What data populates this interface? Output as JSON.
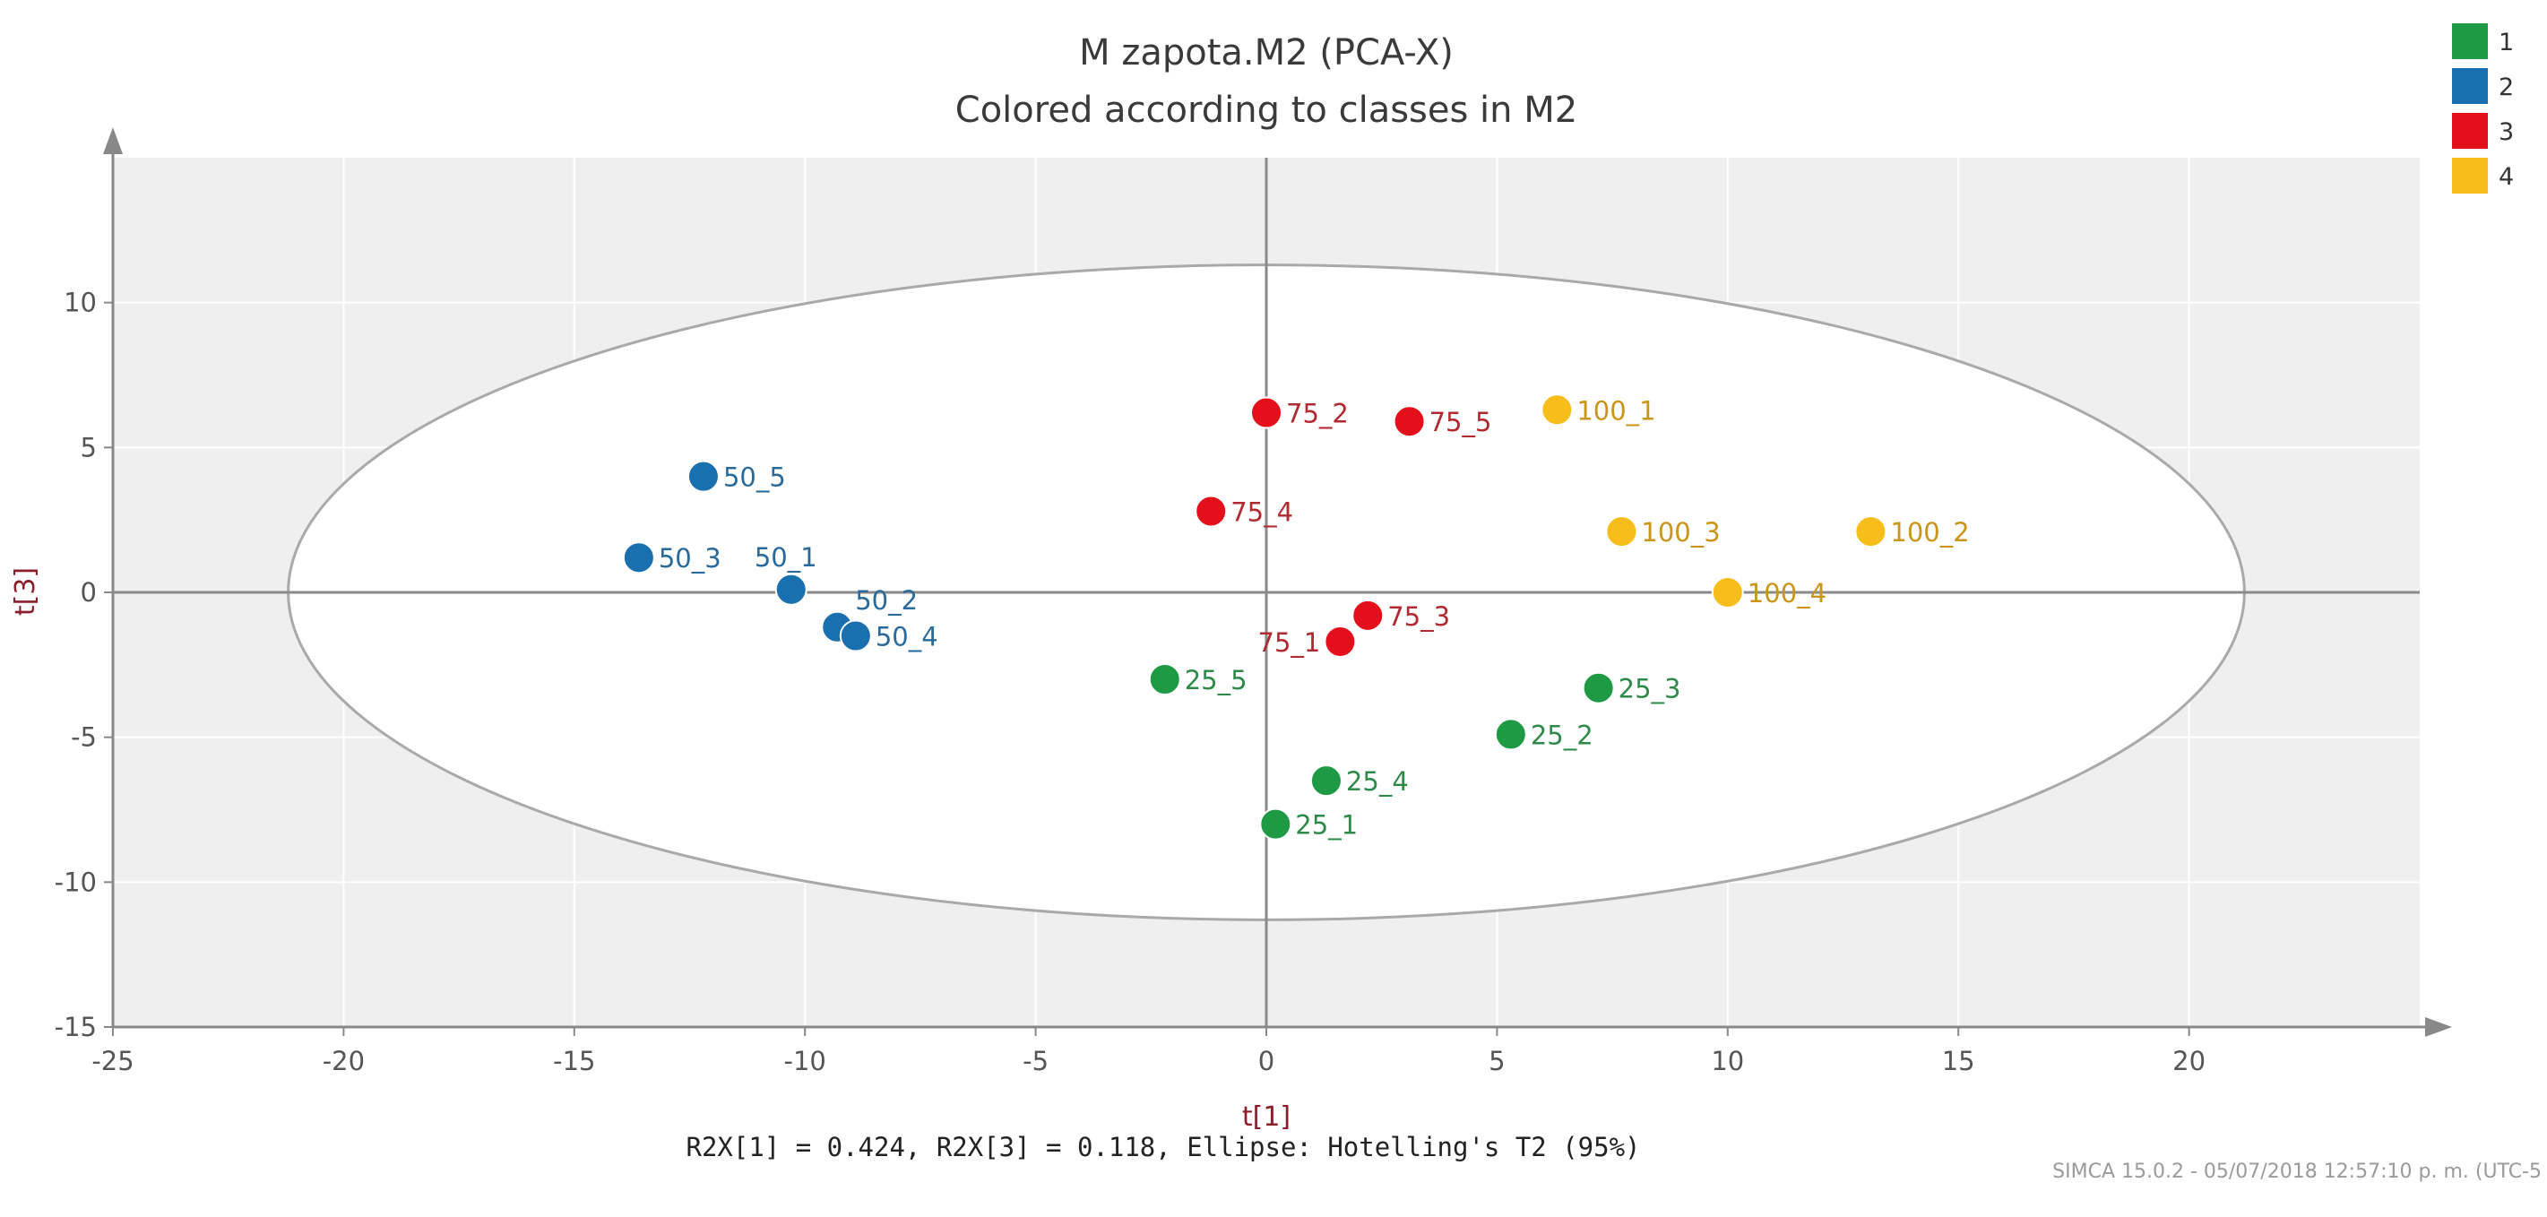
{
  "chart_data": {
    "type": "scatter",
    "title": "M zapota.M2 (PCA-X)",
    "subtitle": "Colored according to classes in M2",
    "xlabel": "t[1]",
    "ylabel": "t[3]",
    "xlim": [
      -25,
      25
    ],
    "ylim": [
      -15,
      15
    ],
    "xticks": [
      -25,
      -20,
      -15,
      -10,
      -5,
      0,
      5,
      10,
      15,
      20
    ],
    "yticks": [
      -15,
      -10,
      -5,
      0,
      5,
      10
    ],
    "grid": true,
    "legend_position": "top-right",
    "ellipse": {
      "label": "Hotelling's T2 (95%)",
      "center": [
        0,
        0
      ],
      "rx": 21.2,
      "ry": 11.3
    },
    "footer": "R2X[1] = 0.424, R2X[3] = 0.118, Ellipse: Hotelling's T2 (95%)",
    "credit": "SIMCA 15.0.2 - 05/07/2018 12:57:10 p. m. (UTC-5",
    "series": [
      {
        "name": "1",
        "color": "#1e9a45",
        "points": [
          {
            "label": "25_1",
            "x": 0.2,
            "y": -8.0
          },
          {
            "label": "25_2",
            "x": 5.3,
            "y": -4.9
          },
          {
            "label": "25_3",
            "x": 7.2,
            "y": -3.3
          },
          {
            "label": "25_4",
            "x": 1.3,
            "y": -6.5
          },
          {
            "label": "25_5",
            "x": -2.2,
            "y": -3.0
          }
        ]
      },
      {
        "name": "2",
        "color": "#1a6fae",
        "points": [
          {
            "label": "50_1",
            "x": -10.3,
            "y": 0.1
          },
          {
            "label": "50_2",
            "x": -9.3,
            "y": -1.2
          },
          {
            "label": "50_3",
            "x": -13.6,
            "y": 1.2
          },
          {
            "label": "50_4",
            "x": -8.9,
            "y": -1.5
          },
          {
            "label": "50_5",
            "x": -12.2,
            "y": 4.0
          }
        ]
      },
      {
        "name": "3",
        "color": "#e3101b",
        "points": [
          {
            "label": "75_1",
            "x": 1.6,
            "y": -1.7
          },
          {
            "label": "75_2",
            "x": 0.0,
            "y": 6.2
          },
          {
            "label": "75_3",
            "x": 2.2,
            "y": -0.8
          },
          {
            "label": "75_4",
            "x": -1.2,
            "y": 2.8
          },
          {
            "label": "75_5",
            "x": 3.1,
            "y": 5.9
          }
        ]
      },
      {
        "name": "4",
        "color": "#f7bd1a",
        "points": [
          {
            "label": "100_1",
            "x": 6.3,
            "y": 6.3
          },
          {
            "label": "100_2",
            "x": 13.1,
            "y": 2.1
          },
          {
            "label": "100_3",
            "x": 7.7,
            "y": 2.1
          },
          {
            "label": "100_4",
            "x": 10.0,
            "y": 0.0
          }
        ]
      }
    ],
    "label_colors": {
      "1": "#2f8a4a",
      "2": "#2a6a9a",
      "3": "#b02a30",
      "4": "#c9951a"
    }
  }
}
